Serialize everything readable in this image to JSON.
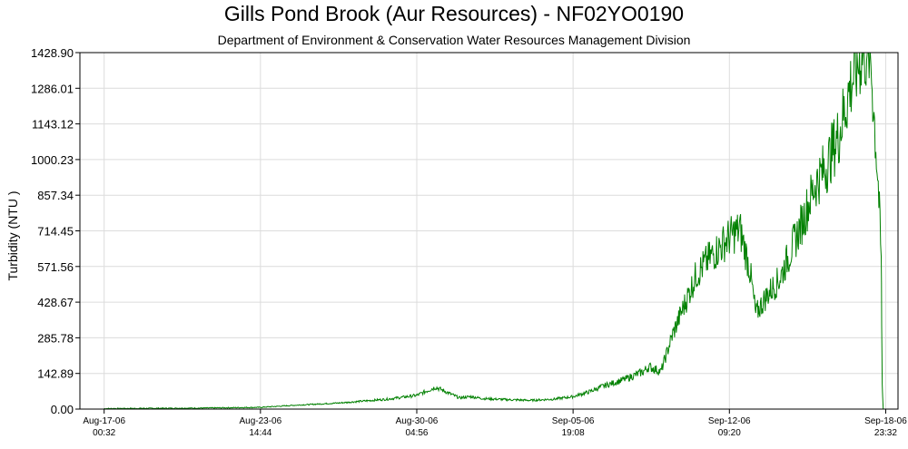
{
  "chart_data": {
    "type": "line",
    "title": "Gills Pond Brook (Aur Resources) - NF02YO0190",
    "subtitle": "Department of Environment & Conservation Water Resources Management Division",
    "ylabel": "Turbidity (NTU )",
    "xlabel": "",
    "ylim": [
      0,
      1428.9
    ],
    "xlim": [
      "2006-08-16T00:00",
      "2006-09-19T12:00"
    ],
    "y_ticks": [
      "0.00",
      "142.89",
      "285.78",
      "428.67",
      "571.56",
      "714.45",
      "857.34",
      "1000.23",
      "1143.12",
      "1286.01",
      "1428.90"
    ],
    "x_ticks": [
      {
        "date": "Aug-17-06",
        "time": "00:32",
        "at": "2006-08-17T00:32"
      },
      {
        "date": "Aug-23-06",
        "time": "14:44",
        "at": "2006-08-23T14:44"
      },
      {
        "date": "Aug-30-06",
        "time": "04:56",
        "at": "2006-08-30T04:56"
      },
      {
        "date": "Sep-05-06",
        "time": "19:08",
        "at": "2006-09-05T19:08"
      },
      {
        "date": "Sep-12-06",
        "time": "09:20",
        "at": "2006-09-12T09:20"
      },
      {
        "date": "Sep-18-06",
        "time": "23:32",
        "at": "2006-09-18T23:32"
      }
    ],
    "grid": true,
    "line_color": "#008000",
    "series": [
      {
        "x": [
          "2006-08-17T00:32",
          "2006-08-19T00:00",
          "2006-08-21T00:00",
          "2006-08-23T14:44",
          "2006-08-25T00:00",
          "2006-08-27T00:00",
          "2006-08-29T00:00",
          "2006-08-30T04:56",
          "2006-08-31T00:00",
          "2006-09-01T00:00",
          "2006-09-01T12:00",
          "2006-09-02T00:00",
          "2006-09-03T00:00",
          "2006-09-04T00:00",
          "2006-09-05T00:00",
          "2006-09-05T19:08",
          "2006-09-06T12:00",
          "2006-09-07T00:00",
          "2006-09-08T00:00",
          "2006-09-08T18:00",
          "2006-09-09T00:00",
          "2006-09-09T12:00",
          "2006-09-10T00:00",
          "2006-09-10T12:00",
          "2006-09-11T00:00",
          "2006-09-11T12:00",
          "2006-09-12T00:00",
          "2006-09-12T09:20",
          "2006-09-12T20:00",
          "2006-09-13T06:00",
          "2006-09-13T12:00",
          "2006-09-14T00:00",
          "2006-09-14T12:00",
          "2006-09-15T00:00",
          "2006-09-15T12:00",
          "2006-09-16T00:00",
          "2006-09-16T12:00",
          "2006-09-17T00:00",
          "2006-09-17T12:00",
          "2006-09-18T00:00",
          "2006-09-18T08:00",
          "2006-09-18T16:00",
          "2006-09-18T19:00",
          "2006-09-18T20:00",
          "2006-09-18T21:00"
        ],
        "y": [
          2,
          3,
          4,
          7,
          15,
          25,
          40,
          55,
          88,
          45,
          50,
          42,
          38,
          35,
          40,
          50,
          70,
          90,
          120,
          150,
          170,
          150,
          300,
          420,
          540,
          600,
          650,
          690,
          720,
          560,
          380,
          460,
          520,
          640,
          760,
          900,
          980,
          1100,
          1300,
          1428,
          1428,
          900,
          600,
          100,
          0
        ]
      }
    ]
  }
}
